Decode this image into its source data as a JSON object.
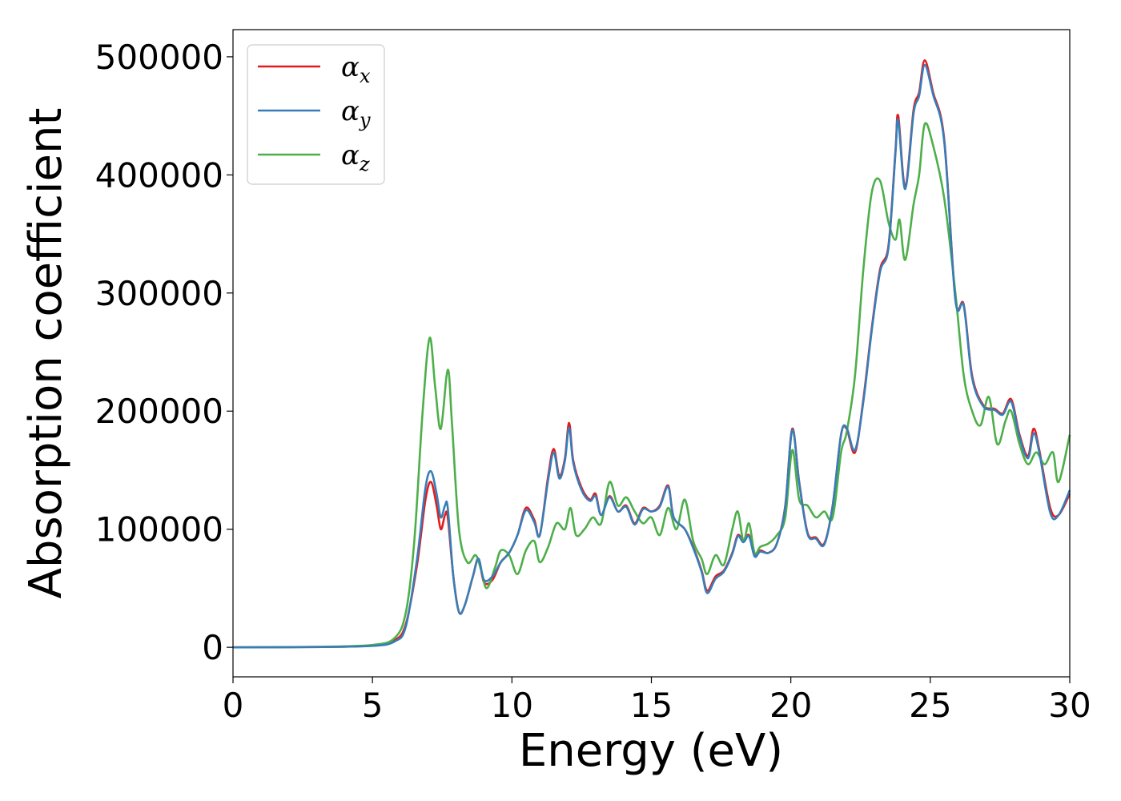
{
  "chart_data": {
    "type": "line",
    "xlabel": "Energy (eV)",
    "ylabel": "Absorption coefficient",
    "xlim": [
      0,
      30
    ],
    "ylim": [
      -25000,
      523000
    ],
    "xticks": [
      0,
      5,
      10,
      15,
      20,
      25,
      30
    ],
    "xtick_labels": [
      "0",
      "5",
      "10",
      "15",
      "20",
      "25",
      "30"
    ],
    "yticks": [
      0,
      100000,
      200000,
      300000,
      400000,
      500000
    ],
    "ytick_labels": [
      "0",
      "100000",
      "200000",
      "300000",
      "400000",
      "500000"
    ],
    "grid": false,
    "legend_position": "top-left",
    "series": [
      {
        "name": "α",
        "name_sub": "x",
        "color": "#e41a1c",
        "points": [
          [
            0,
            0
          ],
          [
            3,
            300
          ],
          [
            5,
            1500
          ],
          [
            5.8,
            6000
          ],
          [
            6.2,
            20000
          ],
          [
            6.6,
            70000
          ],
          [
            6.9,
            125000
          ],
          [
            7.1,
            140000
          ],
          [
            7.3,
            120000
          ],
          [
            7.45,
            100000
          ],
          [
            7.6,
            112000
          ],
          [
            7.7,
            110000
          ],
          [
            7.9,
            60000
          ],
          [
            8.1,
            30000
          ],
          [
            8.3,
            35000
          ],
          [
            8.6,
            60000
          ],
          [
            8.8,
            75000
          ],
          [
            9.0,
            55000
          ],
          [
            9.3,
            57000
          ],
          [
            9.6,
            72000
          ],
          [
            9.9,
            80000
          ],
          [
            10.2,
            95000
          ],
          [
            10.5,
            118000
          ],
          [
            10.8,
            108000
          ],
          [
            11.0,
            95000
          ],
          [
            11.3,
            145000
          ],
          [
            11.5,
            168000
          ],
          [
            11.7,
            145000
          ],
          [
            11.9,
            160000
          ],
          [
            12.05,
            190000
          ],
          [
            12.2,
            158000
          ],
          [
            12.5,
            135000
          ],
          [
            12.8,
            125000
          ],
          [
            13.0,
            130000
          ],
          [
            13.2,
            112000
          ],
          [
            13.5,
            128000
          ],
          [
            13.8,
            115000
          ],
          [
            14.1,
            120000
          ],
          [
            14.4,
            105000
          ],
          [
            14.7,
            118000
          ],
          [
            15.0,
            115000
          ],
          [
            15.3,
            120000
          ],
          [
            15.6,
            137000
          ],
          [
            15.8,
            110000
          ],
          [
            16.2,
            100000
          ],
          [
            16.5,
            85000
          ],
          [
            16.8,
            65000
          ],
          [
            17.0,
            48000
          ],
          [
            17.3,
            60000
          ],
          [
            17.6,
            65000
          ],
          [
            17.9,
            80000
          ],
          [
            18.1,
            95000
          ],
          [
            18.3,
            90000
          ],
          [
            18.5,
            95000
          ],
          [
            18.7,
            78000
          ],
          [
            18.9,
            82000
          ],
          [
            19.2,
            80000
          ],
          [
            19.5,
            88000
          ],
          [
            19.8,
            120000
          ],
          [
            20.05,
            185000
          ],
          [
            20.3,
            140000
          ],
          [
            20.6,
            97000
          ],
          [
            20.9,
            93000
          ],
          [
            21.2,
            88000
          ],
          [
            21.5,
            120000
          ],
          [
            21.8,
            180000
          ],
          [
            22.0,
            185000
          ],
          [
            22.3,
            165000
          ],
          [
            22.6,
            210000
          ],
          [
            22.9,
            270000
          ],
          [
            23.2,
            320000
          ],
          [
            23.5,
            340000
          ],
          [
            23.75,
            420000
          ],
          [
            23.85,
            450000
          ],
          [
            24.1,
            390000
          ],
          [
            24.4,
            455000
          ],
          [
            24.6,
            470000
          ],
          [
            24.8,
            497000
          ],
          [
            25.1,
            470000
          ],
          [
            25.5,
            430000
          ],
          [
            25.9,
            295000
          ],
          [
            26.2,
            290000
          ],
          [
            26.5,
            230000
          ],
          [
            26.9,
            205000
          ],
          [
            27.3,
            202000
          ],
          [
            27.6,
            198000
          ],
          [
            27.9,
            210000
          ],
          [
            28.2,
            180000
          ],
          [
            28.5,
            162000
          ],
          [
            28.7,
            185000
          ],
          [
            28.9,
            168000
          ],
          [
            29.3,
            118000
          ],
          [
            29.6,
            112000
          ],
          [
            30.0,
            130000
          ]
        ]
      },
      {
        "name": "α",
        "name_sub": "y",
        "color": "#377eb8",
        "points": [
          [
            0,
            0
          ],
          [
            3,
            250
          ],
          [
            5,
            1200
          ],
          [
            5.8,
            5000
          ],
          [
            6.2,
            18000
          ],
          [
            6.6,
            75000
          ],
          [
            6.9,
            135000
          ],
          [
            7.1,
            149000
          ],
          [
            7.3,
            130000
          ],
          [
            7.45,
            110000
          ],
          [
            7.6,
            120000
          ],
          [
            7.7,
            118000
          ],
          [
            7.9,
            60000
          ],
          [
            8.1,
            30000
          ],
          [
            8.3,
            35000
          ],
          [
            8.6,
            60000
          ],
          [
            8.8,
            75000
          ],
          [
            9.0,
            57000
          ],
          [
            9.3,
            60000
          ],
          [
            9.6,
            72000
          ],
          [
            9.9,
            80000
          ],
          [
            10.2,
            95000
          ],
          [
            10.5,
            116000
          ],
          [
            10.8,
            106000
          ],
          [
            11.0,
            95000
          ],
          [
            11.3,
            142000
          ],
          [
            11.5,
            165000
          ],
          [
            11.7,
            143000
          ],
          [
            11.9,
            158000
          ],
          [
            12.05,
            186000
          ],
          [
            12.2,
            156000
          ],
          [
            12.5,
            133000
          ],
          [
            12.8,
            124000
          ],
          [
            13.0,
            128000
          ],
          [
            13.2,
            112000
          ],
          [
            13.5,
            127000
          ],
          [
            13.8,
            115000
          ],
          [
            14.1,
            119000
          ],
          [
            14.4,
            104000
          ],
          [
            14.7,
            117000
          ],
          [
            15.0,
            115000
          ],
          [
            15.3,
            119000
          ],
          [
            15.6,
            136000
          ],
          [
            15.8,
            110000
          ],
          [
            16.2,
            100000
          ],
          [
            16.5,
            84000
          ],
          [
            16.8,
            64000
          ],
          [
            17.0,
            46000
          ],
          [
            17.3,
            58000
          ],
          [
            17.6,
            64000
          ],
          [
            17.9,
            79000
          ],
          [
            18.1,
            94000
          ],
          [
            18.3,
            89000
          ],
          [
            18.5,
            94000
          ],
          [
            18.7,
            77000
          ],
          [
            18.9,
            81000
          ],
          [
            19.2,
            80000
          ],
          [
            19.5,
            88000
          ],
          [
            19.8,
            119000
          ],
          [
            20.05,
            184000
          ],
          [
            20.3,
            139000
          ],
          [
            20.6,
            96000
          ],
          [
            20.9,
            92000
          ],
          [
            21.2,
            87000
          ],
          [
            21.5,
            120000
          ],
          [
            21.8,
            180000
          ],
          [
            22.0,
            186000
          ],
          [
            22.3,
            167000
          ],
          [
            22.6,
            208000
          ],
          [
            22.9,
            268000
          ],
          [
            23.2,
            318000
          ],
          [
            23.5,
            338000
          ],
          [
            23.75,
            418000
          ],
          [
            23.85,
            446000
          ],
          [
            24.1,
            388000
          ],
          [
            24.4,
            452000
          ],
          [
            24.6,
            467000
          ],
          [
            24.8,
            493000
          ],
          [
            25.1,
            468000
          ],
          [
            25.5,
            428000
          ],
          [
            25.9,
            294000
          ],
          [
            26.2,
            289000
          ],
          [
            26.5,
            228000
          ],
          [
            26.9,
            204000
          ],
          [
            27.3,
            201000
          ],
          [
            27.6,
            197000
          ],
          [
            27.9,
            208000
          ],
          [
            28.2,
            178000
          ],
          [
            28.5,
            160000
          ],
          [
            28.7,
            181000
          ],
          [
            28.9,
            166000
          ],
          [
            29.3,
            114000
          ],
          [
            29.6,
            112000
          ],
          [
            30.0,
            133000
          ]
        ]
      },
      {
        "name": "α",
        "name_sub": "z",
        "color": "#4daf4a",
        "points": [
          [
            0,
            0
          ],
          [
            3,
            400
          ],
          [
            5,
            2000
          ],
          [
            5.8,
            8000
          ],
          [
            6.2,
            30000
          ],
          [
            6.5,
            90000
          ],
          [
            6.8,
            200000
          ],
          [
            7.05,
            262000
          ],
          [
            7.25,
            220000
          ],
          [
            7.45,
            185000
          ],
          [
            7.7,
            235000
          ],
          [
            7.85,
            190000
          ],
          [
            8.1,
            100000
          ],
          [
            8.4,
            72000
          ],
          [
            8.7,
            78000
          ],
          [
            8.9,
            65000
          ],
          [
            9.1,
            50000
          ],
          [
            9.4,
            68000
          ],
          [
            9.6,
            82000
          ],
          [
            9.9,
            78000
          ],
          [
            10.2,
            62000
          ],
          [
            10.5,
            82000
          ],
          [
            10.8,
            90000
          ],
          [
            11.0,
            72000
          ],
          [
            11.3,
            85000
          ],
          [
            11.6,
            105000
          ],
          [
            11.9,
            100000
          ],
          [
            12.1,
            118000
          ],
          [
            12.3,
            95000
          ],
          [
            12.6,
            100000
          ],
          [
            12.9,
            110000
          ],
          [
            13.2,
            105000
          ],
          [
            13.5,
            140000
          ],
          [
            13.8,
            120000
          ],
          [
            14.1,
            127000
          ],
          [
            14.4,
            115000
          ],
          [
            14.7,
            105000
          ],
          [
            15.0,
            110000
          ],
          [
            15.3,
            95000
          ],
          [
            15.6,
            118000
          ],
          [
            15.9,
            100000
          ],
          [
            16.2,
            125000
          ],
          [
            16.5,
            90000
          ],
          [
            16.8,
            75000
          ],
          [
            17.0,
            62000
          ],
          [
            17.3,
            78000
          ],
          [
            17.6,
            70000
          ],
          [
            17.9,
            100000
          ],
          [
            18.1,
            115000
          ],
          [
            18.3,
            90000
          ],
          [
            18.5,
            105000
          ],
          [
            18.7,
            80000
          ],
          [
            18.9,
            85000
          ],
          [
            19.2,
            88000
          ],
          [
            19.5,
            95000
          ],
          [
            19.8,
            110000
          ],
          [
            20.05,
            167000
          ],
          [
            20.3,
            125000
          ],
          [
            20.6,
            120000
          ],
          [
            20.9,
            110000
          ],
          [
            21.2,
            115000
          ],
          [
            21.5,
            110000
          ],
          [
            21.8,
            165000
          ],
          [
            22.0,
            182000
          ],
          [
            22.3,
            230000
          ],
          [
            22.6,
            320000
          ],
          [
            22.9,
            385000
          ],
          [
            23.2,
            395000
          ],
          [
            23.5,
            360000
          ],
          [
            23.75,
            345000
          ],
          [
            23.9,
            362000
          ],
          [
            24.1,
            328000
          ],
          [
            24.4,
            375000
          ],
          [
            24.6,
            400000
          ],
          [
            24.8,
            443000
          ],
          [
            25.1,
            425000
          ],
          [
            25.5,
            380000
          ],
          [
            25.9,
            300000
          ],
          [
            26.2,
            230000
          ],
          [
            26.5,
            200000
          ],
          [
            26.8,
            188000
          ],
          [
            27.1,
            212000
          ],
          [
            27.4,
            172000
          ],
          [
            27.7,
            192000
          ],
          [
            27.9,
            200000
          ],
          [
            28.2,
            172000
          ],
          [
            28.5,
            155000
          ],
          [
            28.8,
            165000
          ],
          [
            29.1,
            155000
          ],
          [
            29.4,
            165000
          ],
          [
            29.6,
            140000
          ],
          [
            30.0,
            180000
          ]
        ]
      }
    ]
  }
}
